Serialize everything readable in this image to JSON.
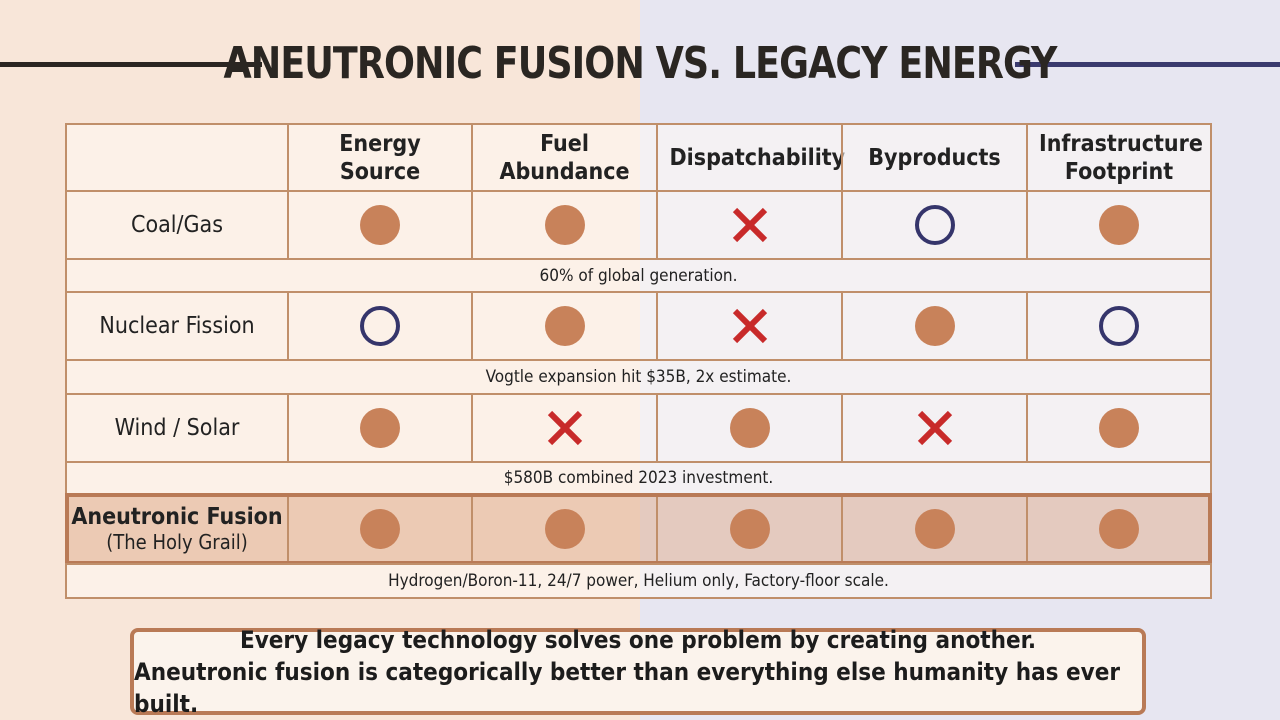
{
  "header": {
    "title": "ANEUTRONIC FUSION VS. LEGACY ENERGY"
  },
  "table": {
    "columns": [
      "Energy Source",
      "Fuel Abundance",
      "Dispatchability",
      "Byproducts",
      "Infrastructure Footprint"
    ],
    "rows": [
      {
        "label": "Coal/Gas",
        "cells": [
          "filled",
          "filled",
          "cross",
          "open",
          "filled"
        ],
        "note": "60% of global generation."
      },
      {
        "label": "Nuclear Fission",
        "cells": [
          "open",
          "filled",
          "cross",
          "filled",
          "open"
        ],
        "note": "Vogtle expansion hit $35B, 2x estimate."
      },
      {
        "label": "Wind / Solar",
        "cells": [
          "filled",
          "cross",
          "filled",
          "cross",
          "filled"
        ],
        "note": "$580B combined 2023 investment."
      },
      {
        "label": "Aneutronic Fusion",
        "sublabel": "(The Holy Grail)",
        "highlight": true,
        "cells": [
          "filled",
          "filled",
          "filled",
          "filled",
          "filled"
        ],
        "note": "Hydrogen/Boron-11, 24/7 power, Helium only, Factory-floor scale."
      }
    ]
  },
  "footer": {
    "lines": [
      "Every legacy technology solves one problem by creating another.",
      "Aneutronic fusion is categorically better than everything else humanity has ever built."
    ]
  }
}
